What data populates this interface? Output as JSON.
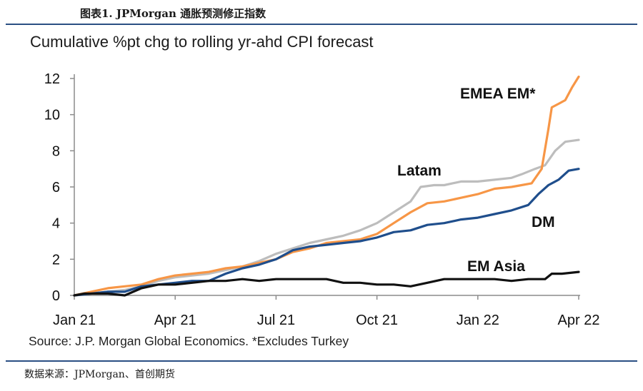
{
  "header": {
    "figure_title": "图表1.  JPMorgan 通胀预测修正指数"
  },
  "footer": {
    "data_source": "数据来源：JPMorgan、首创期货"
  },
  "chart_data": {
    "type": "line",
    "title": "Cumulative %pt chg to rolling yr-ahd CPI forecast",
    "source": "Source: J.P. Morgan Global Economics. *Excludes Turkey",
    "xlabel": "",
    "ylabel": "",
    "x_start": "Jan 21",
    "x_end": "Apr 22",
    "x_ticks": [
      {
        "label": "Jan 21",
        "month": 0
      },
      {
        "label": "Apr 21",
        "month": 3
      },
      {
        "label": "Jul 21",
        "month": 6
      },
      {
        "label": "Oct 21",
        "month": 9
      },
      {
        "label": "Jan 22",
        "month": 12
      },
      {
        "label": "Apr 22",
        "month": 15
      }
    ],
    "y_ticks": [
      0,
      2,
      4,
      6,
      8,
      10,
      12
    ],
    "ylim": [
      0,
      12
    ],
    "xlim": [
      0,
      15
    ],
    "series": [
      {
        "name": "Latam",
        "color": "#bdbdbd",
        "points": [
          [
            0,
            0
          ],
          [
            0.5,
            0.1
          ],
          [
            1,
            0.2
          ],
          [
            1.5,
            0.3
          ],
          [
            2,
            0.5
          ],
          [
            2.5,
            0.8
          ],
          [
            3,
            1.0
          ],
          [
            3.5,
            1.1
          ],
          [
            4,
            1.2
          ],
          [
            4.5,
            1.4
          ],
          [
            5,
            1.6
          ],
          [
            5.5,
            1.9
          ],
          [
            6,
            2.3
          ],
          [
            6.5,
            2.6
          ],
          [
            7,
            2.9
          ],
          [
            7.5,
            3.1
          ],
          [
            8,
            3.3
          ],
          [
            8.5,
            3.6
          ],
          [
            9,
            4.0
          ],
          [
            9.5,
            4.6
          ],
          [
            10,
            5.2
          ],
          [
            10.3,
            6.0
          ],
          [
            10.7,
            6.1
          ],
          [
            11,
            6.1
          ],
          [
            11.5,
            6.3
          ],
          [
            12,
            6.3
          ],
          [
            12.5,
            6.4
          ],
          [
            13,
            6.5
          ],
          [
            13.3,
            6.7
          ],
          [
            13.7,
            7.0
          ],
          [
            14,
            7.2
          ],
          [
            14.3,
            8.0
          ],
          [
            14.6,
            8.5
          ],
          [
            15,
            8.6
          ]
        ]
      },
      {
        "name": "EMEA EM*",
        "color": "#f79646",
        "points": [
          [
            0,
            0
          ],
          [
            0.5,
            0.2
          ],
          [
            1,
            0.4
          ],
          [
            1.5,
            0.5
          ],
          [
            2,
            0.6
          ],
          [
            2.5,
            0.9
          ],
          [
            3,
            1.1
          ],
          [
            3.5,
            1.2
          ],
          [
            4,
            1.3
          ],
          [
            4.5,
            1.5
          ],
          [
            5,
            1.6
          ],
          [
            5.5,
            1.8
          ],
          [
            6,
            2.0
          ],
          [
            6.5,
            2.4
          ],
          [
            7,
            2.6
          ],
          [
            7.5,
            2.9
          ],
          [
            8,
            3.0
          ],
          [
            8.5,
            3.1
          ],
          [
            9,
            3.4
          ],
          [
            9.5,
            4.0
          ],
          [
            10,
            4.6
          ],
          [
            10.5,
            5.1
          ],
          [
            11,
            5.2
          ],
          [
            11.5,
            5.4
          ],
          [
            12,
            5.6
          ],
          [
            12.5,
            5.9
          ],
          [
            13,
            6.0
          ],
          [
            13.3,
            6.1
          ],
          [
            13.6,
            6.2
          ],
          [
            13.9,
            7.0
          ],
          [
            14.1,
            9.2
          ],
          [
            14.2,
            10.4
          ],
          [
            14.4,
            10.6
          ],
          [
            14.6,
            10.8
          ],
          [
            14.8,
            11.5
          ],
          [
            15,
            12.1
          ]
        ]
      },
      {
        "name": "DM",
        "color": "#1f4e8c",
        "points": [
          [
            0,
            0
          ],
          [
            0.5,
            0.1
          ],
          [
            1,
            0.2
          ],
          [
            1.5,
            0.2
          ],
          [
            2,
            0.5
          ],
          [
            2.5,
            0.6
          ],
          [
            3,
            0.7
          ],
          [
            3.5,
            0.8
          ],
          [
            4,
            0.8
          ],
          [
            4.5,
            1.2
          ],
          [
            5,
            1.5
          ],
          [
            5.5,
            1.7
          ],
          [
            6,
            2.0
          ],
          [
            6.5,
            2.5
          ],
          [
            7,
            2.7
          ],
          [
            7.5,
            2.8
          ],
          [
            8,
            2.9
          ],
          [
            8.5,
            3.0
          ],
          [
            9,
            3.2
          ],
          [
            9.5,
            3.5
          ],
          [
            10,
            3.6
          ],
          [
            10.5,
            3.9
          ],
          [
            11,
            4.0
          ],
          [
            11.5,
            4.2
          ],
          [
            12,
            4.3
          ],
          [
            12.5,
            4.5
          ],
          [
            13,
            4.7
          ],
          [
            13.5,
            5.0
          ],
          [
            13.8,
            5.6
          ],
          [
            14.1,
            6.1
          ],
          [
            14.4,
            6.4
          ],
          [
            14.7,
            6.9
          ],
          [
            15,
            7.0
          ]
        ]
      },
      {
        "name": "EM Asia",
        "color": "#111111",
        "points": [
          [
            0,
            0
          ],
          [
            0.3,
            0.1
          ],
          [
            1,
            0.1
          ],
          [
            1.5,
            0.0
          ],
          [
            2,
            0.4
          ],
          [
            2.5,
            0.6
          ],
          [
            3,
            0.6
          ],
          [
            3.5,
            0.7
          ],
          [
            4,
            0.8
          ],
          [
            4.5,
            0.8
          ],
          [
            5,
            0.9
          ],
          [
            5.5,
            0.8
          ],
          [
            6,
            0.9
          ],
          [
            6.5,
            0.9
          ],
          [
            7,
            0.9
          ],
          [
            7.5,
            0.9
          ],
          [
            8,
            0.7
          ],
          [
            8.5,
            0.7
          ],
          [
            9,
            0.6
          ],
          [
            9.5,
            0.6
          ],
          [
            10,
            0.5
          ],
          [
            10.5,
            0.7
          ],
          [
            11,
            0.9
          ],
          [
            11.5,
            0.9
          ],
          [
            12,
            0.9
          ],
          [
            12.5,
            0.9
          ],
          [
            13,
            0.8
          ],
          [
            13.5,
            0.9
          ],
          [
            14,
            0.9
          ],
          [
            14.2,
            1.2
          ],
          [
            14.5,
            1.2
          ],
          [
            15,
            1.3
          ]
        ]
      }
    ],
    "annotations": [
      "Latam",
      "EMEA EM*",
      "DM",
      "EM Asia"
    ]
  }
}
